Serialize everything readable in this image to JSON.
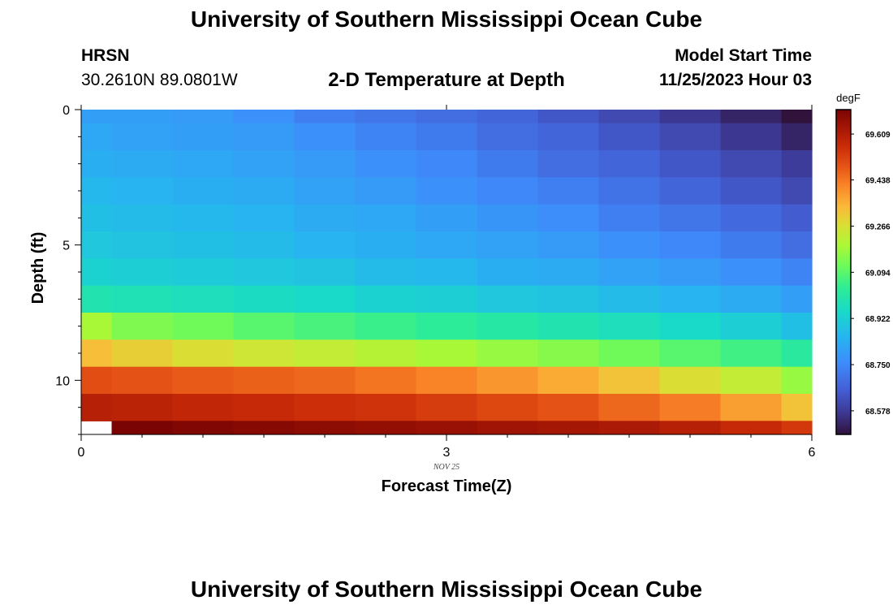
{
  "page": {
    "title_top": "University of Southern Mississippi Ocean Cube",
    "title_bottom": "University of Southern Mississippi Ocean Cube",
    "station": "HRSN",
    "coords": "30.2610N  89.0801W",
    "plot_title": "2-D Temperature at Depth",
    "model_start_label": "Model Start Time",
    "model_start_value": "11/25/2023 Hour 03"
  },
  "chart_data": {
    "type": "heatmap",
    "title": "2-D Temperature at Depth",
    "xlabel": "Forecast Time(Z)",
    "ylabel": "Depth (ft)",
    "x_date_label": "NOV 25",
    "xlim": [
      0,
      6
    ],
    "ylim": [
      12,
      0
    ],
    "xticks": [
      0,
      3,
      6
    ],
    "yticks": [
      0,
      5,
      10
    ],
    "x_edges": [
      0,
      0.25,
      0.75,
      1.25,
      1.75,
      2.25,
      2.75,
      3.25,
      3.75,
      4.25,
      4.75,
      5.25,
      5.75,
      6.0
    ],
    "y_edges": [
      0,
      0.5,
      1.5,
      2.5,
      3.5,
      4.5,
      5.5,
      6.5,
      7.5,
      8.5,
      9.5,
      10.5,
      11.5,
      12.0
    ],
    "values": [
      [
        68.8,
        68.8,
        68.79,
        68.77,
        68.73,
        68.71,
        68.69,
        68.67,
        68.64,
        68.61,
        68.57,
        68.53,
        68.49
      ],
      [
        68.82,
        68.81,
        68.8,
        68.79,
        68.77,
        68.74,
        68.72,
        68.69,
        68.67,
        68.64,
        68.61,
        68.57,
        68.53
      ],
      [
        68.84,
        68.83,
        68.82,
        68.81,
        68.79,
        68.77,
        68.75,
        68.72,
        68.69,
        68.67,
        68.64,
        68.61,
        68.58
      ],
      [
        68.86,
        68.85,
        68.84,
        68.83,
        68.81,
        68.79,
        68.77,
        68.75,
        68.73,
        68.7,
        68.67,
        68.64,
        68.61
      ],
      [
        68.88,
        68.87,
        68.86,
        68.85,
        68.83,
        68.82,
        68.8,
        68.78,
        68.76,
        68.73,
        68.71,
        68.68,
        68.65
      ],
      [
        68.9,
        68.89,
        68.88,
        68.87,
        68.85,
        68.84,
        68.82,
        68.81,
        68.79,
        68.77,
        68.75,
        68.72,
        68.69
      ],
      [
        68.93,
        68.92,
        68.91,
        68.9,
        68.89,
        68.87,
        68.86,
        68.84,
        68.83,
        68.81,
        68.79,
        68.77,
        68.74
      ],
      [
        68.99,
        68.98,
        68.97,
        68.96,
        68.95,
        68.93,
        68.92,
        68.9,
        68.89,
        68.87,
        68.85,
        68.83,
        68.8
      ],
      [
        69.19,
        69.14,
        69.12,
        69.09,
        69.07,
        69.05,
        69.03,
        69.01,
        68.99,
        68.97,
        68.95,
        68.92,
        68.88
      ],
      [
        69.33,
        69.3,
        69.27,
        69.25,
        69.23,
        69.21,
        69.19,
        69.17,
        69.15,
        69.12,
        69.09,
        69.06,
        69.02
      ],
      [
        69.5,
        69.49,
        69.48,
        69.47,
        69.46,
        69.44,
        69.42,
        69.39,
        69.36,
        69.32,
        69.27,
        69.23,
        69.17
      ],
      [
        69.6,
        69.59,
        69.58,
        69.57,
        69.56,
        69.55,
        69.53,
        69.51,
        69.49,
        69.46,
        69.43,
        69.38,
        69.32
      ],
      [
        null,
        69.7,
        69.69,
        69.68,
        69.67,
        69.66,
        69.65,
        69.64,
        69.63,
        69.62,
        69.6,
        69.57,
        69.54
      ]
    ],
    "colorbar": {
      "unit": "degF",
      "range": [
        68.49,
        69.7
      ],
      "ticks": [
        68.578,
        68.75,
        68.922,
        69.094,
        69.266,
        69.438,
        69.609
      ]
    }
  }
}
